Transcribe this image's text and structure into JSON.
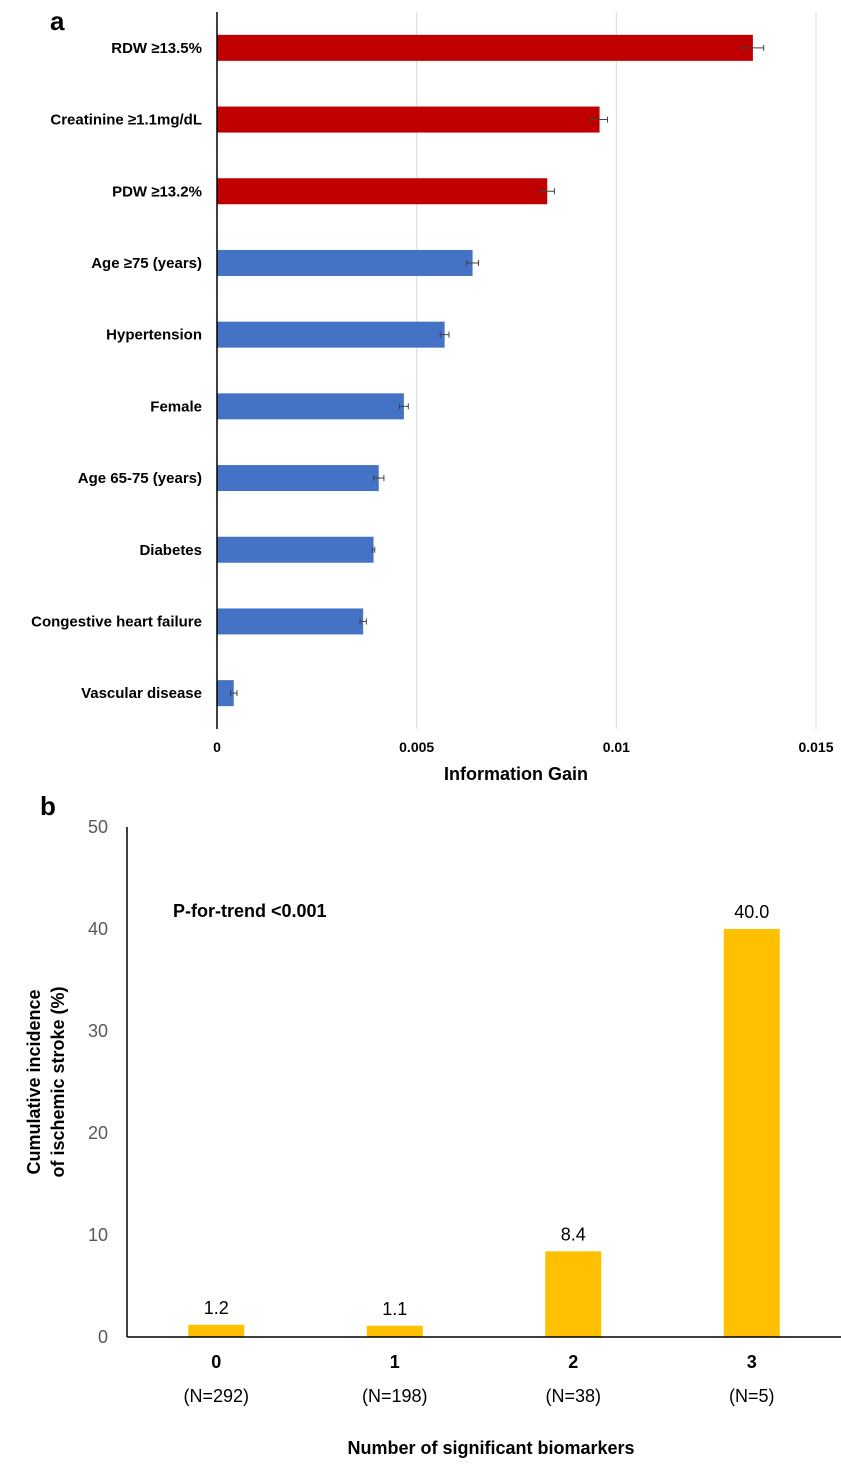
{
  "colors": {
    "significant": "#c00000",
    "other": "#4472c4",
    "panel_b_bar": "#ffc000",
    "gridline": "#d9d9d9",
    "error_bar": "#404040"
  },
  "chart_data": [
    {
      "panel": "a",
      "type": "bar",
      "orientation": "horizontal",
      "categories": [
        "RDW ≥13.5%",
        "Creatinine ≥1.1mg/dL",
        "PDW ≥13.2%",
        "Age ≥75 (years)",
        "Hypertension",
        "Female",
        "Age 65-75 (years)",
        "Diabetes",
        "Congestive heart failure",
        "Vascular disease"
      ],
      "values": [
        0.01342,
        0.00958,
        0.00827,
        0.0064,
        0.0057,
        0.00468,
        0.00405,
        0.00392,
        0.00366,
        0.00042
      ],
      "errors": [
        0.00027,
        0.0002,
        0.00018,
        0.00015,
        0.00011,
        0.00011,
        0.00013,
        3e-05,
        8e-05,
        8e-05
      ],
      "highlight": [
        true,
        true,
        true,
        false,
        false,
        false,
        false,
        false,
        false,
        false
      ],
      "xlabel": "Information Gain",
      "xlim": [
        0,
        0.015
      ],
      "xticks": [
        0,
        0.005,
        0.01,
        0.015
      ],
      "xtick_labels": [
        "0",
        "0.005",
        "0.01",
        "0.015"
      ],
      "grid": "vertical"
    },
    {
      "panel": "b",
      "type": "bar",
      "orientation": "vertical",
      "categories": [
        "0",
        "1",
        "2",
        "3"
      ],
      "sublabels": [
        "(N=292)",
        "(N=198)",
        "(N=38)",
        "(N=5)"
      ],
      "values": [
        1.2,
        1.1,
        8.4,
        40.0
      ],
      "data_labels": [
        "1.2",
        "1.1",
        "8.4",
        "40.0"
      ],
      "xlabel": "Number of significant biomarkers",
      "ylabel_lines": [
        "Cumulative incidence",
        "of ischemic stroke (%)"
      ],
      "ylim": [
        0,
        50
      ],
      "yticks": [
        0,
        10,
        20,
        30,
        40,
        50
      ],
      "annotation": "P-for-trend <0.001",
      "grid": "none"
    }
  ]
}
